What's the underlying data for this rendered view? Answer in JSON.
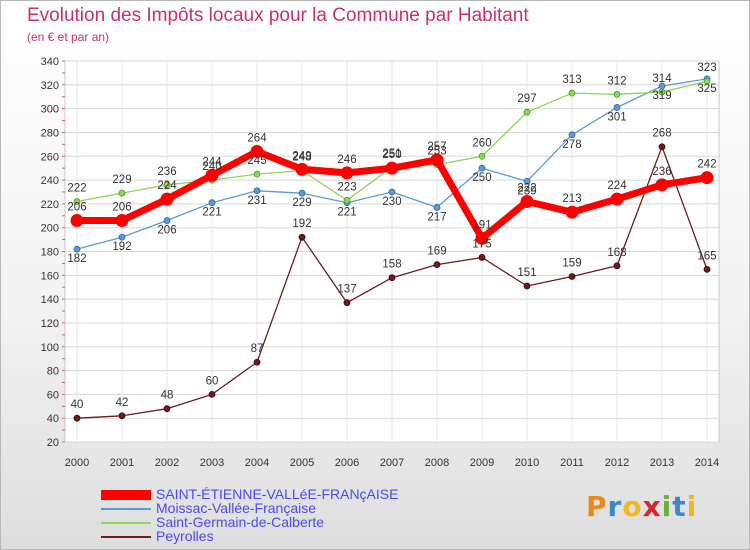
{
  "chart_data": {
    "type": "line",
    "title": "Evolution des Impôts locaux pour la Commune par Habitant",
    "subtitle": "(en € et par an)",
    "xlabel": "",
    "ylabel": "",
    "ylim": [
      20,
      340
    ],
    "yticks": [
      20,
      40,
      60,
      80,
      100,
      120,
      140,
      160,
      180,
      200,
      220,
      240,
      260,
      280,
      300,
      320,
      340
    ],
    "x": [
      2000,
      2001,
      2002,
      2003,
      2004,
      2005,
      2006,
      2007,
      2008,
      2009,
      2010,
      2011,
      2012,
      2013,
      2014
    ],
    "grid": true,
    "legend_position": "bottom-left",
    "series": [
      {
        "name": "Peyrolles",
        "color": "#6e1a1a",
        "values": [
          40,
          42,
          48,
          60,
          87,
          192,
          137,
          158,
          169,
          175,
          151,
          159,
          168,
          268,
          165
        ]
      },
      {
        "name": "Moissac-Vallée-Française",
        "color": "#5b9bd5",
        "values": [
          182,
          192,
          206,
          221,
          231,
          229,
          221,
          230,
          217,
          250,
          239,
          278,
          301,
          319,
          325
        ]
      },
      {
        "name": "Saint-Germain-de-Calberte",
        "color": "#8cd65a",
        "values": [
          222,
          229,
          236,
          240,
          245,
          248,
          223,
          251,
          253,
          260,
          297,
          313,
          312,
          314,
          323
        ]
      },
      {
        "name": "SAINT-ÉTIENNE-VALLéE-FRANçAISE",
        "color": "#ff0000",
        "values": [
          206,
          206,
          224,
          244,
          264,
          249,
          246,
          250,
          257,
          191,
          222,
          213,
          224,
          236,
          242
        ]
      }
    ],
    "legend_order": [
      3,
      1,
      2,
      0
    ]
  },
  "brand": {
    "logo_text": "Proxiti"
  }
}
